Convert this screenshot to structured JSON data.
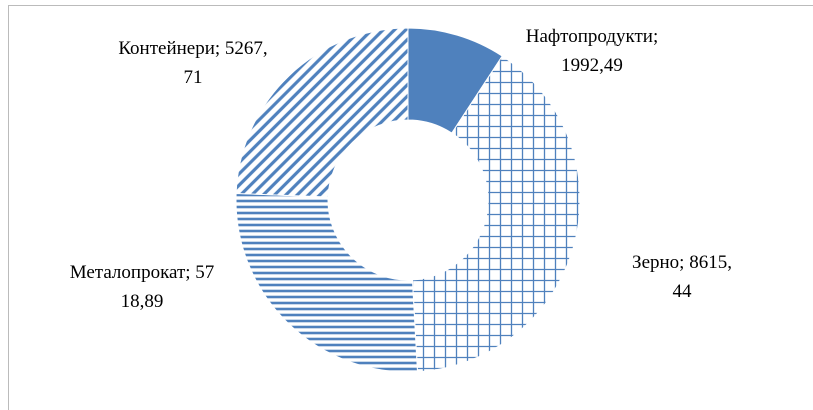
{
  "chart_data": {
    "type": "doughnut",
    "categories": [
      "Нафтопродукти",
      "Зерно",
      "Металопрокат",
      "Контейнери"
    ],
    "values": [
      1992.49,
      8615.44,
      5718.89,
      5267.71
    ],
    "value_labels": [
      "1992,49",
      "8615,44",
      "5718,89",
      "5267,71"
    ],
    "label_separator": "; ",
    "colors": [
      "#4f81bd",
      "#4f81bd",
      "#4f81bd",
      "#4f81bd"
    ]
  }
}
